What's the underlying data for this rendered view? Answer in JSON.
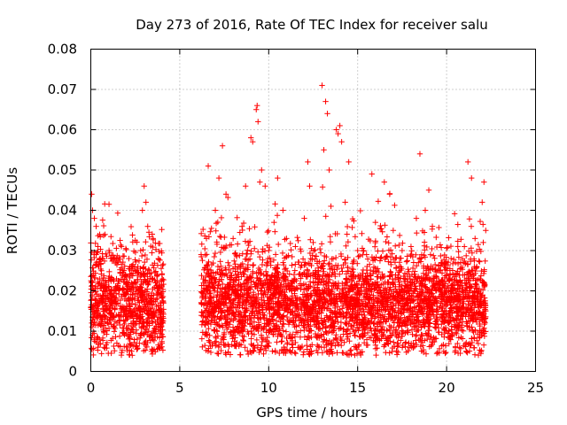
{
  "chart_data": {
    "type": "scatter",
    "title": "Day 273 of 2016, Rate Of TEC Index for receiver salu",
    "xlabel": "GPS time / hours",
    "ylabel": "ROTI / TECUs",
    "xlim": [
      0,
      25
    ],
    "ylim": [
      0,
      0.08
    ],
    "x_ticks": [
      "0",
      "5",
      "10",
      "15",
      "20",
      "25"
    ],
    "y_ticks": [
      "0",
      "0.01",
      "0.02",
      "0.03",
      "0.04",
      "0.05",
      "0.06",
      "0.07",
      "0.08"
    ],
    "grid": true,
    "marker": "+",
    "color": "#ff0000",
    "series": [
      {
        "name": "ROTI",
        "coverage_hours": [
          [
            0.0,
            4.1
          ],
          [
            6.2,
            22.2
          ]
        ],
        "typical_range": [
          0.008,
          0.025
        ],
        "points": [
          [
            0.05,
            0.044
          ],
          [
            0.1,
            0.04
          ],
          [
            0.2,
            0.038
          ],
          [
            0.3,
            0.036
          ],
          [
            0.4,
            0.031
          ],
          [
            0.5,
            0.034
          ],
          [
            0.6,
            0.025
          ],
          [
            0.7,
            0.02
          ],
          [
            0.8,
            0.034
          ],
          [
            0.3,
            0.029
          ],
          [
            0.45,
            0.026
          ],
          [
            1.0,
            0.018
          ],
          [
            1.5,
            0.021
          ],
          [
            2.0,
            0.022
          ],
          [
            2.5,
            0.025
          ],
          [
            2.9,
            0.04
          ],
          [
            3.0,
            0.046
          ],
          [
            3.1,
            0.042
          ],
          [
            3.2,
            0.036
          ],
          [
            3.5,
            0.033
          ],
          [
            3.8,
            0.028
          ],
          [
            4.0,
            0.007
          ],
          [
            3.9,
            0.006
          ],
          [
            6.2,
            0.029
          ],
          [
            6.5,
            0.033
          ],
          [
            6.6,
            0.051
          ],
          [
            7.0,
            0.04
          ],
          [
            7.2,
            0.048
          ],
          [
            7.4,
            0.056
          ],
          [
            7.6,
            0.044
          ],
          [
            8.0,
            0.033
          ],
          [
            8.5,
            0.036
          ],
          [
            8.7,
            0.046
          ],
          [
            9.0,
            0.058
          ],
          [
            9.1,
            0.057
          ],
          [
            9.3,
            0.065
          ],
          [
            9.35,
            0.066
          ],
          [
            9.4,
            0.062
          ],
          [
            9.5,
            0.047
          ],
          [
            9.6,
            0.05
          ],
          [
            9.8,
            0.046
          ],
          [
            10.0,
            0.03
          ],
          [
            10.3,
            0.037
          ],
          [
            10.5,
            0.048
          ],
          [
            10.8,
            0.04
          ],
          [
            11.0,
            0.033
          ],
          [
            11.5,
            0.031
          ],
          [
            12.0,
            0.038
          ],
          [
            12.2,
            0.052
          ],
          [
            12.3,
            0.046
          ],
          [
            12.5,
            0.032
          ],
          [
            12.8,
            0.022
          ],
          [
            13.0,
            0.071
          ],
          [
            13.1,
            0.055
          ],
          [
            13.2,
            0.067
          ],
          [
            13.3,
            0.064
          ],
          [
            13.4,
            0.05
          ],
          [
            13.5,
            0.041
          ],
          [
            13.8,
            0.06
          ],
          [
            13.9,
            0.059
          ],
          [
            14.0,
            0.061
          ],
          [
            14.1,
            0.057
          ],
          [
            14.3,
            0.042
          ],
          [
            14.5,
            0.052
          ],
          [
            15.0,
            0.03
          ],
          [
            15.5,
            0.029
          ],
          [
            15.8,
            0.049
          ],
          [
            16.0,
            0.037
          ],
          [
            16.5,
            0.047
          ],
          [
            16.8,
            0.044
          ],
          [
            17.0,
            0.035
          ],
          [
            17.5,
            0.03
          ],
          [
            18.0,
            0.031
          ],
          [
            18.3,
            0.038
          ],
          [
            18.5,
            0.054
          ],
          [
            18.8,
            0.04
          ],
          [
            19.0,
            0.045
          ],
          [
            19.2,
            0.036
          ],
          [
            19.5,
            0.025
          ],
          [
            20.0,
            0.02
          ],
          [
            20.5,
            0.027
          ],
          [
            21.0,
            0.031
          ],
          [
            21.2,
            0.052
          ],
          [
            21.4,
            0.048
          ],
          [
            21.6,
            0.033
          ],
          [
            22.0,
            0.042
          ],
          [
            22.1,
            0.047
          ],
          [
            22.2,
            0.035
          ]
        ]
      }
    ]
  }
}
